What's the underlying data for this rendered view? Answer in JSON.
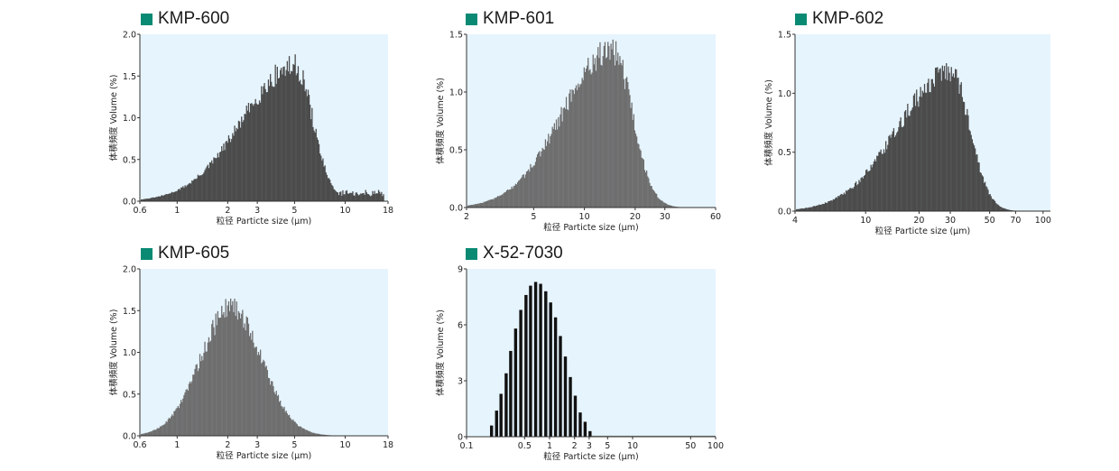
{
  "colors": {
    "accent_square": "#0a8a73",
    "plot_background": "#e6f4fd",
    "bars_dark": "#4b4b4b",
    "bars_mid": "#6e6e6e",
    "bars_black": "#111111"
  },
  "chart_data": [
    {
      "type": "bar",
      "title": "KMP-600",
      "xlabel": "粒径  Particte size (μm)",
      "ylabel": "体積頻度  Volume (%)",
      "xscale": "log",
      "xlim": [
        0.6,
        18
      ],
      "ylim": [
        0,
        2.0
      ],
      "xticks": [
        0.6,
        1,
        2,
        3,
        5,
        10,
        18
      ],
      "xtick_labels": [
        "0.6",
        "1",
        "2",
        "3",
        "5",
        "10",
        "18"
      ],
      "yticks": [
        0,
        0.5,
        1.0,
        1.5,
        2.0
      ],
      "ytick_labels": [
        "0.0",
        "0.5",
        "1.0",
        "1.5",
        "2.0"
      ],
      "bar_color": "bars_dark",
      "peak": {
        "x": 5.0,
        "y": 1.63
      },
      "grid": false,
      "legend": "none"
    },
    {
      "type": "bar",
      "title": "KMP-601",
      "xlabel": "粒径  Particte size (μm)",
      "ylabel": "体積頻度  Volume (%)",
      "xscale": "log",
      "xlim": [
        2,
        60
      ],
      "ylim": [
        0,
        1.5
      ],
      "xticks": [
        2,
        5,
        10,
        20,
        30,
        60
      ],
      "xtick_labels": [
        "2",
        "5",
        "10",
        "20",
        "30",
        "60"
      ],
      "yticks": [
        0,
        0.5,
        1.0,
        1.5
      ],
      "ytick_labels": [
        "0.0",
        "0.5",
        "1.0",
        "1.5"
      ],
      "bar_color": "bars_mid",
      "peak": {
        "x": 14.5,
        "y": 1.38
      },
      "grid": false,
      "legend": "none"
    },
    {
      "type": "bar",
      "title": "KMP-602",
      "xlabel": "粒径  Particte size (μm)",
      "ylabel": "体積頻度  Volume (%)",
      "xscale": "log",
      "xlim": [
        4,
        110
      ],
      "ylim": [
        0,
        1.5
      ],
      "xticks": [
        4,
        10,
        20,
        30,
        50,
        70,
        100
      ],
      "xtick_labels": [
        "4",
        "10",
        "20",
        "30",
        "50",
        "70",
        "100"
      ],
      "yticks": [
        0,
        0.5,
        1.0,
        1.5
      ],
      "ytick_labels": [
        "0.0",
        "0.5",
        "1.0",
        "1.5"
      ],
      "bar_color": "bars_dark",
      "peak": {
        "x": 30,
        "y": 1.18
      },
      "grid": false,
      "legend": "none"
    },
    {
      "type": "bar",
      "title": "KMP-605",
      "xlabel": "粒径  Particte size (μm)",
      "ylabel": "体積頻度  Volume (%)",
      "xscale": "log",
      "xlim": [
        0.6,
        18
      ],
      "ylim": [
        0,
        2.0
      ],
      "xticks": [
        0.6,
        1,
        2,
        3,
        5,
        10,
        18
      ],
      "xtick_labels": [
        "0.6",
        "1",
        "2",
        "3",
        "5",
        "10",
        "18"
      ],
      "yticks": [
        0,
        0.5,
        1.0,
        1.5,
        2.0
      ],
      "ytick_labels": [
        "0.0",
        "0.5",
        "1.0",
        "1.5",
        "2.0"
      ],
      "bar_color": "bars_mid",
      "peak": {
        "x": 2.1,
        "y": 1.55
      },
      "grid": false,
      "legend": "none"
    },
    {
      "type": "bar",
      "title": "X-52-7030",
      "xlabel": "粒径  Particte size (μm)",
      "ylabel": "体積頻度  Volume (%)",
      "xscale": "log",
      "xlim": [
        0.1,
        100
      ],
      "ylim": [
        0,
        9
      ],
      "xticks": [
        0.1,
        0.5,
        1,
        2,
        3,
        5,
        10,
        50,
        100
      ],
      "xtick_labels": [
        "0.1",
        "0.5",
        "1",
        "2",
        "3",
        "5",
        "10",
        "50",
        "100"
      ],
      "yticks": [
        0,
        3,
        6,
        9
      ],
      "ytick_labels": [
        "0",
        "3",
        "6",
        "9"
      ],
      "bar_color": "bars_black",
      "bars": {
        "x": [
          0.2,
          0.23,
          0.26,
          0.3,
          0.34,
          0.39,
          0.45,
          0.52,
          0.59,
          0.68,
          0.78,
          0.9,
          1.03,
          1.18,
          1.35,
          1.55,
          1.78,
          2.04,
          2.34,
          2.68,
          3.07
        ],
        "y": [
          0.6,
          1.4,
          2.3,
          3.4,
          4.6,
          5.8,
          6.8,
          7.6,
          8.1,
          8.3,
          8.2,
          7.8,
          7.2,
          6.4,
          5.4,
          4.3,
          3.2,
          2.2,
          1.3,
          0.8,
          0.3
        ]
      },
      "grid": false,
      "legend": "none"
    }
  ]
}
